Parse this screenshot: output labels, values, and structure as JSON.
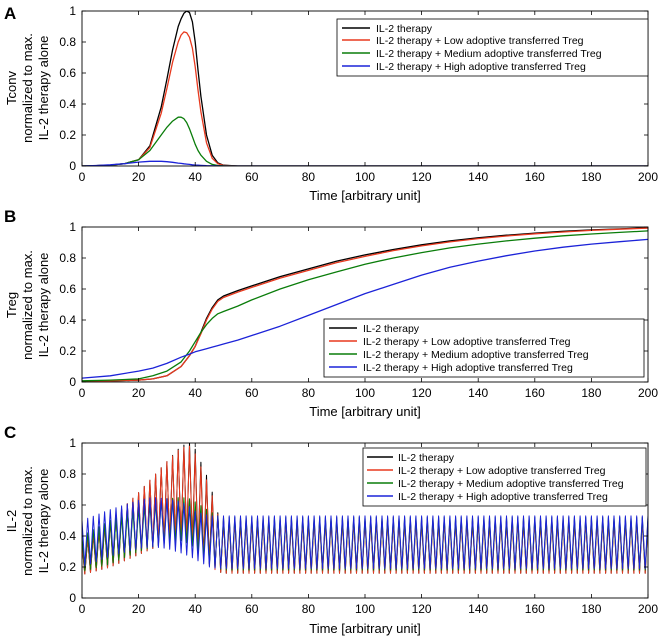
{
  "figure": {
    "panels": [
      "A",
      "B",
      "C"
    ]
  },
  "legend_entries": [
    "IL-2 therapy",
    "IL-2 therapy + Low adoptive transferred Treg",
    "IL-2 therapy + Medium adoptive transferred Treg",
    "IL-2 therapy + High adoptive transferred Treg"
  ],
  "colors": {
    "black": "#000000",
    "red": "#e8391e",
    "green": "#0a7d0a",
    "blue": "#1c23d8"
  },
  "chart_data": [
    {
      "panel": "A",
      "type": "line",
      "ylabel_lines": [
        "Tconv",
        "normalized to max.",
        "IL-2 therapy alone"
      ],
      "xlabel": "Time [arbitrary unit]",
      "xlim": [
        0,
        200
      ],
      "ylim": [
        0,
        1
      ],
      "xticks": [
        0,
        20,
        40,
        60,
        80,
        100,
        120,
        140,
        160,
        180,
        200
      ],
      "yticks": [
        0,
        0.2,
        0.4,
        0.6,
        0.8,
        1
      ],
      "legend_position": "top-right",
      "x": [
        0,
        5,
        10,
        15,
        20,
        24,
        28,
        30,
        32,
        34,
        35,
        36,
        37,
        38,
        39,
        40,
        41,
        42,
        44,
        46,
        48,
        50,
        55,
        60,
        80,
        100,
        120,
        140,
        160,
        180,
        200
      ],
      "series": [
        {
          "name": "IL-2 therapy",
          "color": "#000000",
          "values": [
            0,
            0.002,
            0.006,
            0.015,
            0.04,
            0.13,
            0.38,
            0.56,
            0.75,
            0.9,
            0.95,
            0.985,
            1.0,
            0.99,
            0.93,
            0.8,
            0.62,
            0.45,
            0.2,
            0.07,
            0.02,
            0.005,
            0,
            0,
            0,
            0,
            0,
            0,
            0,
            0,
            0
          ]
        },
        {
          "name": "IL-2 therapy + Low adoptive transferred Treg",
          "color": "#e8391e",
          "values": [
            0,
            0.002,
            0.006,
            0.015,
            0.04,
            0.12,
            0.34,
            0.5,
            0.67,
            0.8,
            0.845,
            0.865,
            0.86,
            0.83,
            0.76,
            0.64,
            0.49,
            0.35,
            0.15,
            0.05,
            0.015,
            0.004,
            0,
            0,
            0,
            0,
            0,
            0,
            0,
            0,
            0
          ]
        },
        {
          "name": "IL-2 therapy + Medium adoptive transferred Treg",
          "color": "#0a7d0a",
          "values": [
            0,
            0.002,
            0.006,
            0.015,
            0.04,
            0.1,
            0.2,
            0.25,
            0.29,
            0.315,
            0.315,
            0.305,
            0.28,
            0.24,
            0.19,
            0.14,
            0.1,
            0.07,
            0.03,
            0.01,
            0.003,
            0.001,
            0,
            0,
            0,
            0,
            0,
            0,
            0,
            0,
            0
          ]
        },
        {
          "name": "IL-2 therapy + High adoptive transferred Treg",
          "color": "#1c23d8",
          "values": [
            0,
            0.003,
            0.008,
            0.015,
            0.025,
            0.03,
            0.03,
            0.028,
            0.024,
            0.019,
            0.017,
            0.014,
            0.012,
            0.01,
            0.008,
            0.006,
            0.005,
            0.004,
            0.002,
            0.001,
            0.0005,
            0,
            0,
            0,
            0,
            0,
            0,
            0,
            0,
            0,
            0
          ]
        }
      ]
    },
    {
      "panel": "B",
      "type": "line",
      "ylabel_lines": [
        "Treg",
        "normalized to max.",
        "IL-2 therapy alone"
      ],
      "xlabel": "Time [arbitrary unit]",
      "xlim": [
        0,
        200
      ],
      "ylim": [
        0,
        1
      ],
      "xticks": [
        0,
        20,
        40,
        60,
        80,
        100,
        120,
        140,
        160,
        180,
        200
      ],
      "yticks": [
        0,
        0.2,
        0.4,
        0.6,
        0.8,
        1
      ],
      "legend_position": "bottom-right",
      "x": [
        0,
        10,
        20,
        25,
        30,
        35,
        38,
        40,
        42,
        44,
        46,
        48,
        50,
        55,
        60,
        70,
        80,
        90,
        100,
        110,
        120,
        130,
        140,
        150,
        160,
        170,
        180,
        190,
        200
      ],
      "series": [
        {
          "name": "IL-2 therapy",
          "color": "#000000",
          "values": [
            0.005,
            0.007,
            0.012,
            0.02,
            0.04,
            0.1,
            0.17,
            0.23,
            0.32,
            0.41,
            0.48,
            0.53,
            0.555,
            0.59,
            0.62,
            0.68,
            0.73,
            0.78,
            0.82,
            0.855,
            0.885,
            0.91,
            0.93,
            0.947,
            0.96,
            0.972,
            0.981,
            0.988,
            0.995
          ]
        },
        {
          "name": "IL-2 therapy + Low adoptive transferred Treg",
          "color": "#e8391e",
          "values": [
            0.005,
            0.007,
            0.012,
            0.02,
            0.04,
            0.1,
            0.17,
            0.23,
            0.31,
            0.4,
            0.47,
            0.52,
            0.545,
            0.58,
            0.61,
            0.67,
            0.72,
            0.77,
            0.81,
            0.848,
            0.878,
            0.904,
            0.925,
            0.942,
            0.956,
            0.968,
            0.978,
            0.986,
            0.993
          ]
        },
        {
          "name": "IL-2 therapy + Medium adoptive transferred Treg",
          "color": "#0a7d0a",
          "values": [
            0.008,
            0.012,
            0.02,
            0.04,
            0.07,
            0.13,
            0.2,
            0.26,
            0.32,
            0.37,
            0.41,
            0.44,
            0.455,
            0.49,
            0.53,
            0.6,
            0.66,
            0.71,
            0.76,
            0.8,
            0.835,
            0.865,
            0.89,
            0.91,
            0.928,
            0.943,
            0.955,
            0.965,
            0.975
          ]
        },
        {
          "name": "IL-2 therapy + High adoptive transferred Treg",
          "color": "#1c23d8",
          "values": [
            0.025,
            0.04,
            0.07,
            0.09,
            0.12,
            0.16,
            0.18,
            0.195,
            0.205,
            0.215,
            0.225,
            0.235,
            0.245,
            0.27,
            0.3,
            0.36,
            0.43,
            0.5,
            0.57,
            0.63,
            0.69,
            0.74,
            0.78,
            0.815,
            0.845,
            0.87,
            0.89,
            0.905,
            0.92
          ]
        }
      ]
    },
    {
      "panel": "C",
      "type": "line",
      "ylabel_lines": [
        "IL-2",
        "normalized to max.",
        "IL-2 therapy alone"
      ],
      "xlabel": "Time [arbitrary unit]",
      "xlim": [
        0,
        200
      ],
      "ylim": [
        0,
        1
      ],
      "xticks": [
        0,
        20,
        40,
        60,
        80,
        100,
        120,
        140,
        160,
        180,
        200
      ],
      "yticks": [
        0,
        0.2,
        0.4,
        0.6,
        0.8,
        1
      ],
      "legend_position": "top-right",
      "oscillation_period": 2,
      "x": [
        0,
        10,
        20,
        25,
        30,
        35,
        38,
        40,
        45,
        48,
        50,
        55,
        60,
        100,
        150,
        200
      ],
      "series": [
        {
          "name": "IL-2 therapy",
          "color": "#000000",
          "upper": [
            0.35,
            0.5,
            0.68,
            0.78,
            0.88,
            0.98,
            1.0,
            0.96,
            0.75,
            0.55,
            0.5,
            0.5,
            0.5,
            0.5,
            0.5,
            0.5
          ],
          "lower": [
            0.15,
            0.2,
            0.28,
            0.32,
            0.36,
            0.38,
            0.37,
            0.33,
            0.22,
            0.17,
            0.16,
            0.16,
            0.16,
            0.16,
            0.16,
            0.16
          ]
        },
        {
          "name": "IL-2 therapy + Low adoptive transferred Treg",
          "color": "#e8391e",
          "upper": [
            0.35,
            0.5,
            0.68,
            0.78,
            0.88,
            0.97,
            0.98,
            0.93,
            0.72,
            0.54,
            0.5,
            0.5,
            0.5,
            0.5,
            0.5,
            0.5
          ],
          "lower": [
            0.15,
            0.2,
            0.28,
            0.32,
            0.36,
            0.38,
            0.36,
            0.32,
            0.21,
            0.17,
            0.16,
            0.16,
            0.16,
            0.16,
            0.16,
            0.16
          ]
        },
        {
          "name": "IL-2 therapy + Medium adoptive transferred Treg",
          "color": "#0a7d0a",
          "upper": [
            0.4,
            0.5,
            0.58,
            0.61,
            0.64,
            0.65,
            0.64,
            0.62,
            0.56,
            0.53,
            0.52,
            0.52,
            0.52,
            0.52,
            0.52,
            0.52
          ],
          "lower": [
            0.17,
            0.22,
            0.3,
            0.33,
            0.36,
            0.37,
            0.35,
            0.32,
            0.22,
            0.19,
            0.18,
            0.18,
            0.18,
            0.18,
            0.18,
            0.18
          ]
        },
        {
          "name": "IL-2 therapy + High adoptive transferred Treg",
          "color": "#1c23d8",
          "upper": [
            0.5,
            0.57,
            0.63,
            0.65,
            0.64,
            0.62,
            0.59,
            0.56,
            0.53,
            0.53,
            0.53,
            0.53,
            0.53,
            0.53,
            0.53,
            0.53
          ],
          "lower": [
            0.2,
            0.27,
            0.32,
            0.33,
            0.32,
            0.29,
            0.27,
            0.25,
            0.2,
            0.19,
            0.19,
            0.19,
            0.19,
            0.19,
            0.19,
            0.19
          ]
        }
      ]
    }
  ]
}
